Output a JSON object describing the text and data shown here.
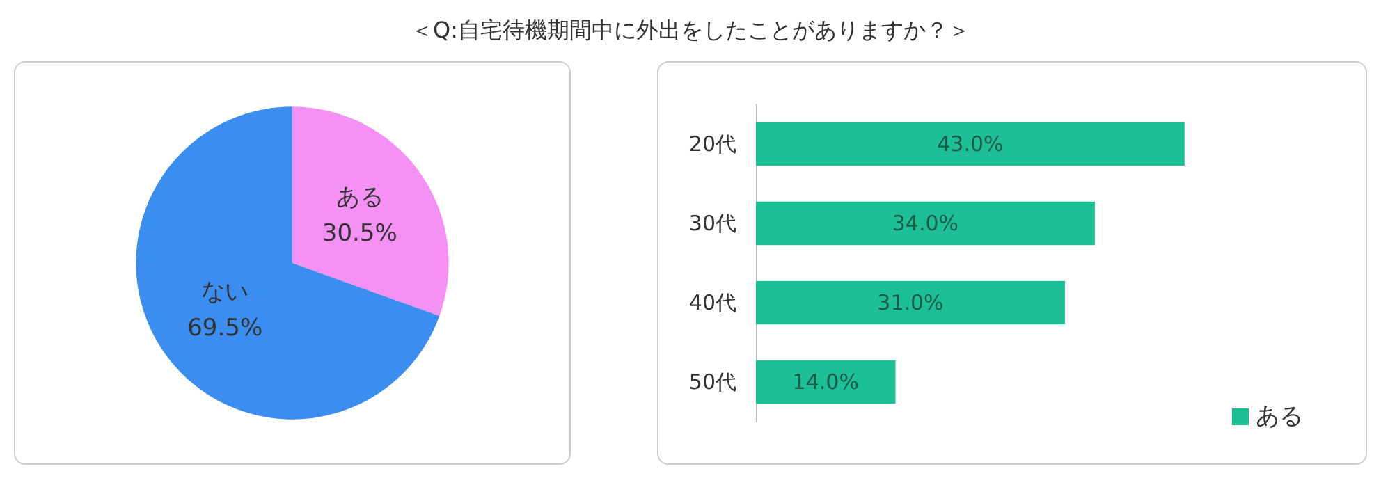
{
  "chart_data": [
    {
      "type": "pie",
      "title": "＜Q:自宅待機期間中に外出をしたことがありますか？＞",
      "categories": [
        "ある",
        "ない"
      ],
      "values": [
        30.5,
        69.5
      ],
      "colors": [
        "#f590f5",
        "#3b8ef0"
      ],
      "value_labels": [
        "30.5%",
        "69.5%"
      ],
      "legend": false
    },
    {
      "type": "bar",
      "orientation": "horizontal",
      "categories": [
        "20代",
        "30代",
        "40代",
        "50代"
      ],
      "series": [
        {
          "name": "ある",
          "color": "#1dbf97",
          "values": [
            43.0,
            34.0,
            31.0,
            14.0
          ],
          "value_labels": [
            "43.0%",
            "34.0%",
            "31.0%",
            "14.0%"
          ]
        }
      ],
      "legend": "bottom right"
    }
  ]
}
